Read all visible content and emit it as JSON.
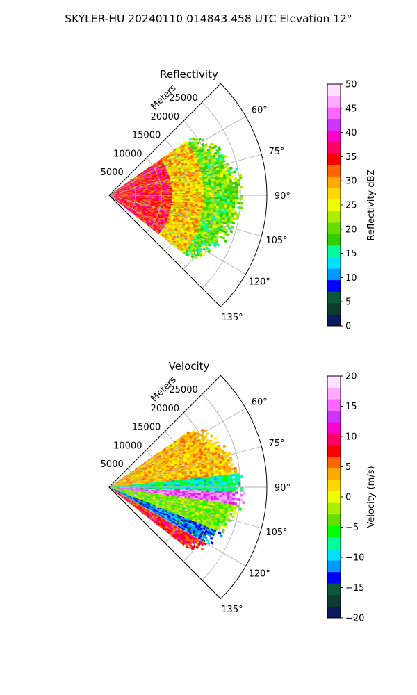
{
  "figure": {
    "suptitle": "SKYLER-HU  20240110  014843.458 UTC Elevation 12°"
  },
  "chart_data": [
    {
      "type": "polar-sector-heatmap",
      "title": "Reflectivity",
      "theta_range_deg": [
        45,
        135
      ],
      "r_range_m": [
        0,
        30000
      ],
      "r_ticks": [
        5000,
        10000,
        15000,
        20000,
        25000
      ],
      "r_tick_labels": [
        "5000",
        "10000",
        "15000",
        "20000",
        "25000"
      ],
      "r_label": "Meters",
      "theta_ticks_deg": [
        60,
        75,
        90,
        105,
        120,
        135
      ],
      "theta_tick_labels": [
        "60°",
        "75°",
        "90°",
        "105°",
        "120°",
        "135°"
      ],
      "grid": true,
      "field": {
        "r_extent_m": [
          0,
          26000
        ],
        "theta_extent_deg": [
          55,
          128
        ],
        "description_levels": [
          {
            "r_m": [
              0,
              12000
            ],
            "typical_value": 35
          },
          {
            "r_m": [
              12000,
              18000
            ],
            "typical_value": 28
          },
          {
            "r_m": [
              18000,
              26000
            ],
            "typical_value": 20
          }
        ]
      },
      "colorbar": {
        "label": "Reflectivity dBZ",
        "vmin": 0,
        "vmax": 50,
        "ticks": [
          0,
          5,
          10,
          15,
          20,
          25,
          30,
          35,
          40,
          45,
          50
        ],
        "tick_labels": [
          "0",
          "5",
          "10",
          "15",
          "20",
          "25",
          "30",
          "35",
          "40",
          "45",
          "50"
        ],
        "colors": [
          "#0a1a5c",
          "#0d3b2e",
          "#0a5a3a",
          "#0000ff",
          "#0099ff",
          "#00e0ff",
          "#00ff99",
          "#33cc00",
          "#66dd00",
          "#aaee00",
          "#eeff00",
          "#ffd700",
          "#ffaa00",
          "#ff6600",
          "#ff0000",
          "#ff0066",
          "#ff00cc",
          "#cc33ff",
          "#ff66ff",
          "#ffaaff",
          "#ffe0ff"
        ]
      }
    },
    {
      "type": "polar-sector-heatmap",
      "title": "Velocity",
      "theta_range_deg": [
        45,
        135
      ],
      "r_range_m": [
        0,
        30000
      ],
      "r_ticks": [
        5000,
        10000,
        15000,
        20000,
        25000
      ],
      "r_tick_labels": [
        "5000",
        "10000",
        "15000",
        "20000",
        "25000"
      ],
      "r_label": "Meters",
      "theta_ticks_deg": [
        60,
        75,
        90,
        105,
        120,
        135
      ],
      "theta_tick_labels": [
        "60°",
        "75°",
        "90°",
        "105°",
        "120°",
        "135°"
      ],
      "grid": true,
      "field": {
        "r_extent_m": [
          0,
          26000
        ],
        "theta_extent_deg": [
          55,
          128
        ],
        "description_bands": [
          {
            "theta_deg": [
              55,
              84
            ],
            "typical_value": 3
          },
          {
            "theta_deg": [
              84,
              92
            ],
            "typical_value": -8
          },
          {
            "theta_deg": [
              92,
              98
            ],
            "typical_value": 15
          },
          {
            "theta_deg": [
              98,
              112
            ],
            "typical_value": -3
          },
          {
            "theta_deg": [
              112,
              120
            ],
            "typical_value": -12
          },
          {
            "theta_deg": [
              120,
              128
            ],
            "typical_value": 8
          }
        ]
      },
      "colorbar": {
        "label": "Velocity (m/s)",
        "vmin": -20,
        "vmax": 20,
        "ticks": [
          -20,
          -15,
          -10,
          -5,
          0,
          5,
          10,
          15,
          20
        ],
        "tick_labels": [
          "−20",
          "−15",
          "−10",
          "−5",
          "0",
          "5",
          "10",
          "15",
          "20"
        ],
        "colors": [
          "#0a1a5c",
          "#0d3b2e",
          "#0a5a3a",
          "#0000ff",
          "#0099ff",
          "#00e0ff",
          "#00ff99",
          "#00ff00",
          "#66dd00",
          "#aaee00",
          "#eeff00",
          "#ffd700",
          "#ffaa00",
          "#ff6600",
          "#ff0000",
          "#ff0066",
          "#ff00cc",
          "#cc33ff",
          "#ff66ff",
          "#ffaaff",
          "#ffe0ff"
        ]
      }
    }
  ]
}
